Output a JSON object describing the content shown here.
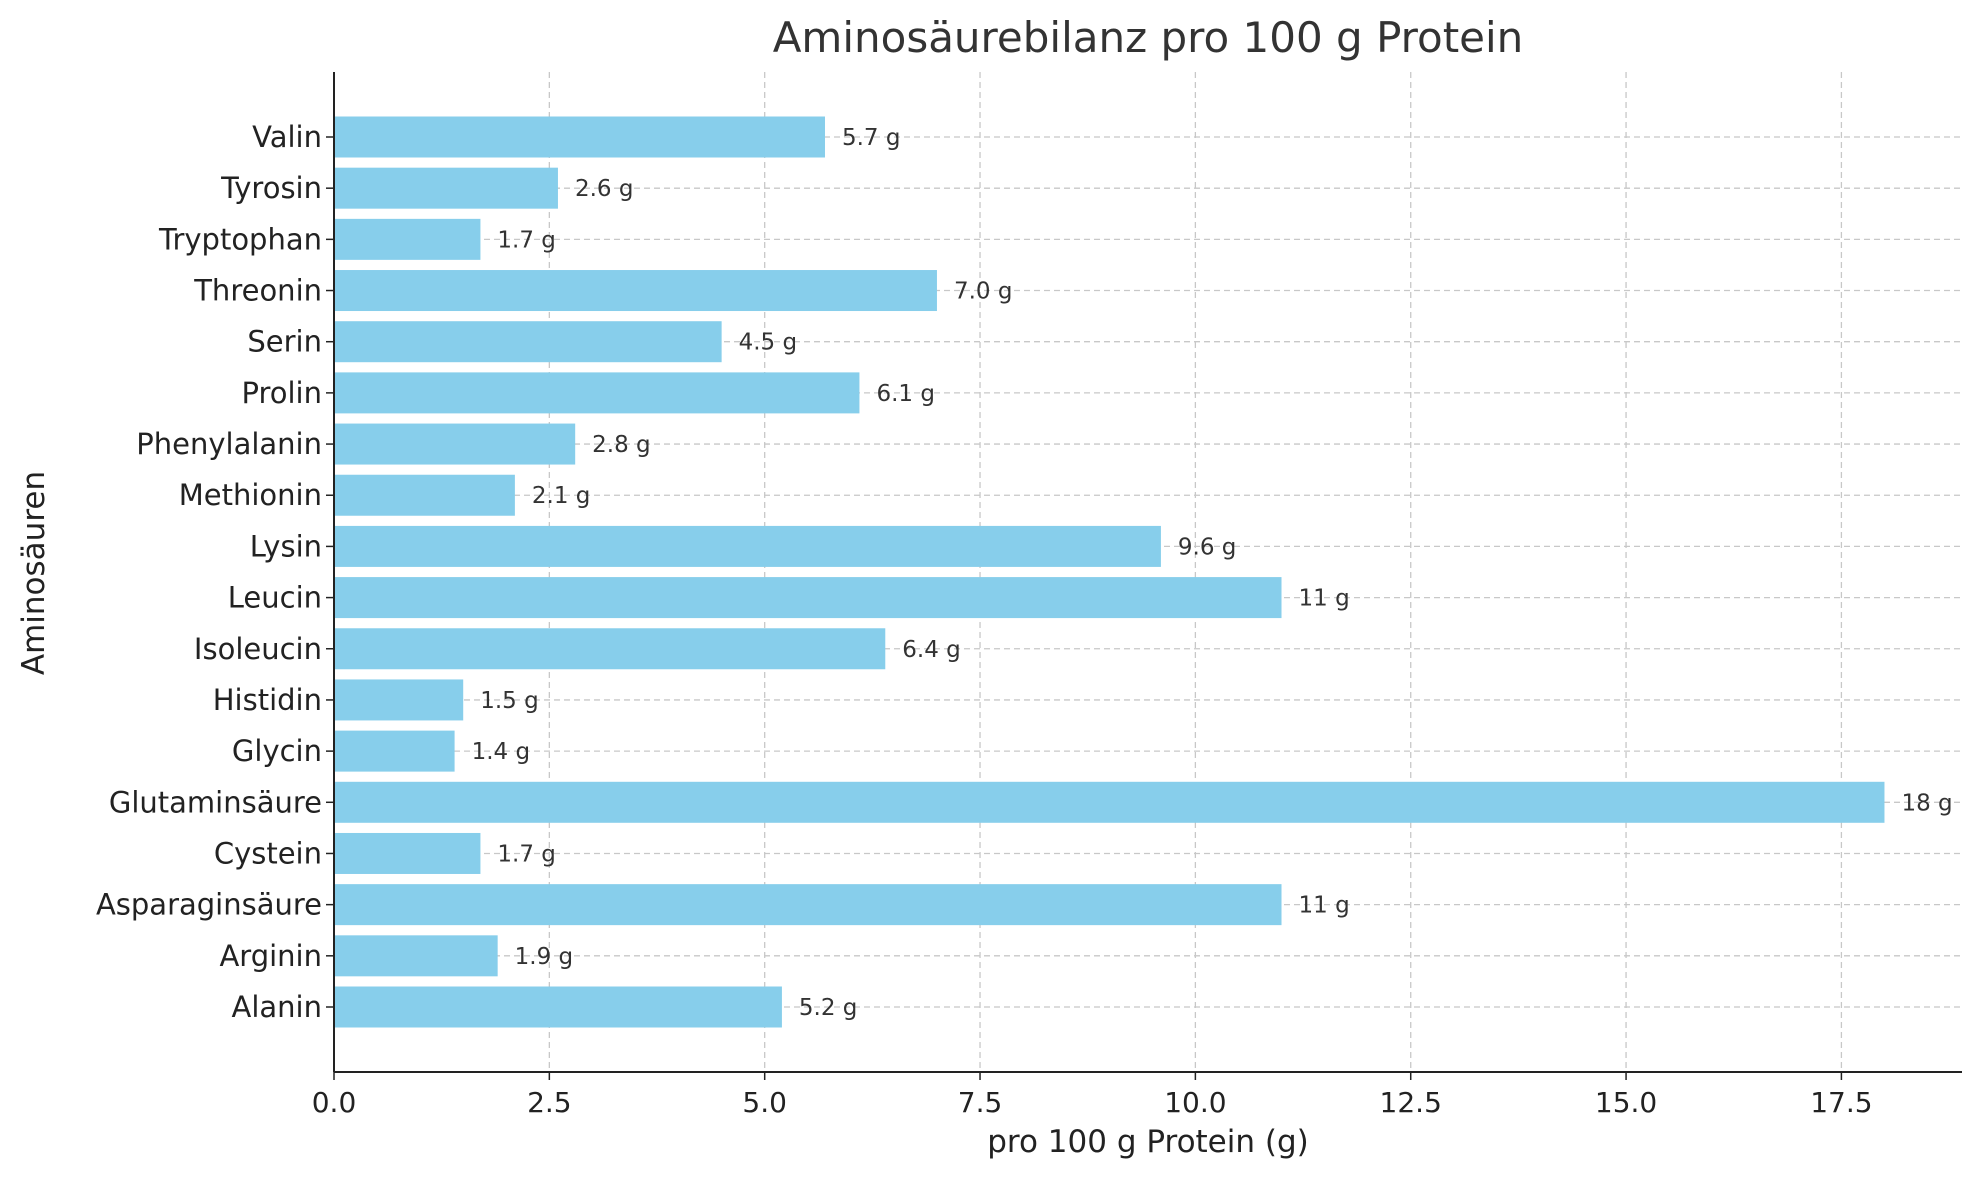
{
  "chart_data": {
    "type": "bar",
    "orientation": "horizontal",
    "title": "Aminosäurebilanz pro 100 g Protein",
    "xlabel": "pro 100 g Protein (g)",
    "ylabel": "Aminosäuren",
    "xlim": [
      0,
      18.9
    ],
    "xticks": [
      0.0,
      2.5,
      5.0,
      7.5,
      10.0,
      12.5,
      15.0,
      17.5
    ],
    "xtick_labels": [
      "0.0",
      "2.5",
      "5.0",
      "7.5",
      "10.0",
      "12.5",
      "15.0",
      "17.5"
    ],
    "grid": true,
    "bar_color": "#87ceeb",
    "categories": [
      "Alanin",
      "Arginin",
      "Asparaginsäure",
      "Cystein",
      "Glutaminsäure",
      "Glycin",
      "Histidin",
      "Isoleucin",
      "Leucin",
      "Lysin",
      "Methionin",
      "Phenylalanin",
      "Prolin",
      "Serin",
      "Threonin",
      "Tryptophan",
      "Tyrosin",
      "Valin"
    ],
    "values": [
      5.2,
      1.9,
      11.0,
      1.7,
      18.0,
      1.4,
      1.5,
      6.4,
      11.0,
      9.6,
      2.1,
      2.8,
      6.1,
      4.5,
      7.0,
      1.7,
      2.6,
      5.7
    ],
    "data_labels": [
      "5.2 g",
      "1.9 g",
      "11 g",
      "1.7 g",
      "18 g",
      "1.4 g",
      "1.5 g",
      "6.4 g",
      "11 g",
      "9.6 g",
      "2.1 g",
      "2.8 g",
      "6.1 g",
      "4.5 g",
      "7.0 g",
      "1.7 g",
      "2.6 g",
      "5.7 g"
    ]
  }
}
